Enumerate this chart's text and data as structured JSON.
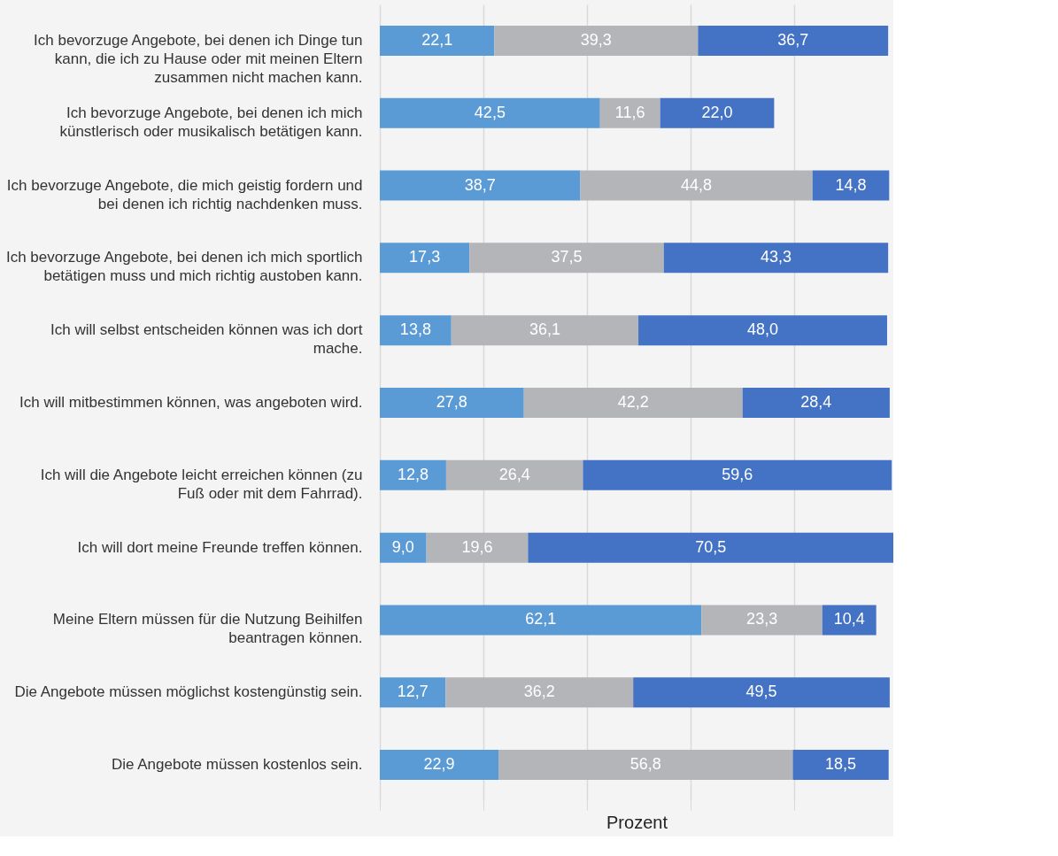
{
  "chart_data": {
    "type": "bar",
    "orientation": "horizontal",
    "stacked": true,
    "xlabel": "Prozent",
    "categories": [
      "Ich bevorzuge Angebote, bei denen ich Dinge tun kann, die ich zu Hause oder mit meinen Eltern zusammen nicht machen kann.",
      "Ich bevorzuge Angebote, bei denen ich mich künstlerisch oder musikalisch betätigen kann.",
      "Ich bevorzuge Angebote, die mich geistig fordern und bei denen ich richtig nachdenken muss.",
      "Ich bevorzuge Angebote, bei denen ich mich sportlich betätigen muss und mich richtig austoben kann.",
      "Ich will selbst entscheiden können was ich dort mache.",
      "Ich will mitbestimmen können, was angeboten wird.",
      "Ich will die Angebote leicht erreichen können (zu Fuß oder mit dem Fahrrad).",
      "Ich will dort meine Freunde treffen können.",
      "Meine Eltern müssen für die Nutzung Beihilfen beantragen können.",
      "Die Angebote müssen möglichst kostengünstig sein.",
      "Die Angebote müssen kostenlos sein."
    ],
    "series": [
      {
        "color": "#5b9bd5",
        "values": [
          22.1,
          42.5,
          38.7,
          17.3,
          13.8,
          27.8,
          12.8,
          9.0,
          62.1,
          12.7,
          22.9
        ],
        "value_labels": [
          "22,1",
          "42,5",
          "38,7",
          "17,3",
          "13,8",
          "27,8",
          "12,8",
          "9,0",
          "62,1",
          "12,7",
          "22,9"
        ]
      },
      {
        "color": "#b4b5b9",
        "values": [
          39.3,
          11.6,
          44.8,
          37.5,
          36.1,
          42.2,
          26.4,
          19.6,
          23.3,
          36.2,
          56.8
        ],
        "value_labels": [
          "39,3",
          "11,6",
          "44,8",
          "37,5",
          "36,1",
          "42,2",
          "26,4",
          "19,6",
          "23,3",
          "36,2",
          "56,8"
        ]
      },
      {
        "color": "#4472c4",
        "values": [
          36.7,
          22.0,
          14.8,
          43.3,
          48.0,
          28.4,
          59.6,
          70.5,
          10.4,
          49.5,
          18.5
        ],
        "value_labels": [
          "36,7",
          "22,0",
          "14,8",
          "43,3",
          "48,0",
          "28,4",
          "59,6",
          "70,5",
          "10,4",
          "49,5",
          "18,5"
        ]
      }
    ],
    "grid": "x",
    "legend": false,
    "tick_labels": "y"
  }
}
